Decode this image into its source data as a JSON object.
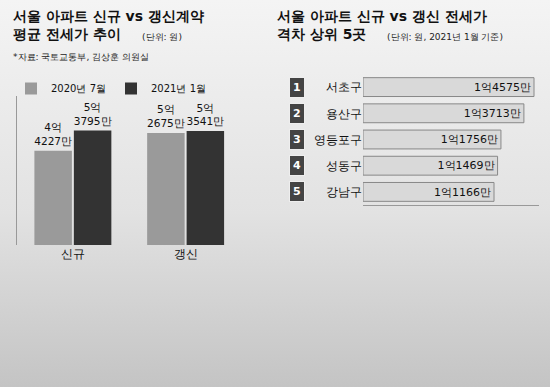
{
  "chart_data": [
    {
      "type": "bar",
      "title": "서울 아파트 신규 vs 갱신계약\n평균 전세가 추이",
      "subtitle": "(단위: 원)",
      "note": "*자료: 국토교통부, 김상훈 의원실",
      "categories": [
        "신규",
        "갱신"
      ],
      "series": [
        {
          "name": "2020년 7월",
          "color": "#9a9a9a",
          "values": [
            442270000,
            526750000
          ],
          "value_labels": [
            "4억\n4227만",
            "5억\n2675만"
          ]
        },
        {
          "name": "2021년 1월",
          "color": "#333333",
          "values": [
            537950000,
            535410000
          ],
          "value_labels": [
            "5억\n3795만",
            "5억\n3541만"
          ]
        }
      ],
      "ylim": [
        0,
        700000000
      ],
      "yticks": [],
      "data_labels": true,
      "tick_labels": "x",
      "grid": false,
      "legend": "top-left"
    },
    {
      "type": "bar",
      "title": "서울 아파트 신규 vs 갱신 전세가\n격차 상위 5곳",
      "subtitle": "(단위: 원, 2021년 1월 기준)",
      "orientation": "horizontal",
      "ranks": [
        1,
        2,
        3,
        4,
        5
      ],
      "categories": [
        "서초구",
        "용산구",
        "영등포구",
        "성동구",
        "강남구"
      ],
      "values": [
        145750000,
        137130000,
        117560000,
        114690000,
        111660000
      ],
      "value_labels": [
        "1억4575만",
        "1억3713만",
        "1억1756만",
        "1억1469만",
        "1억1166만"
      ],
      "color": "#d9d9d9",
      "xlim": [
        0,
        150000000
      ],
      "xticks": [],
      "data_labels": true,
      "tick_labels": "y",
      "grid": false
    }
  ]
}
